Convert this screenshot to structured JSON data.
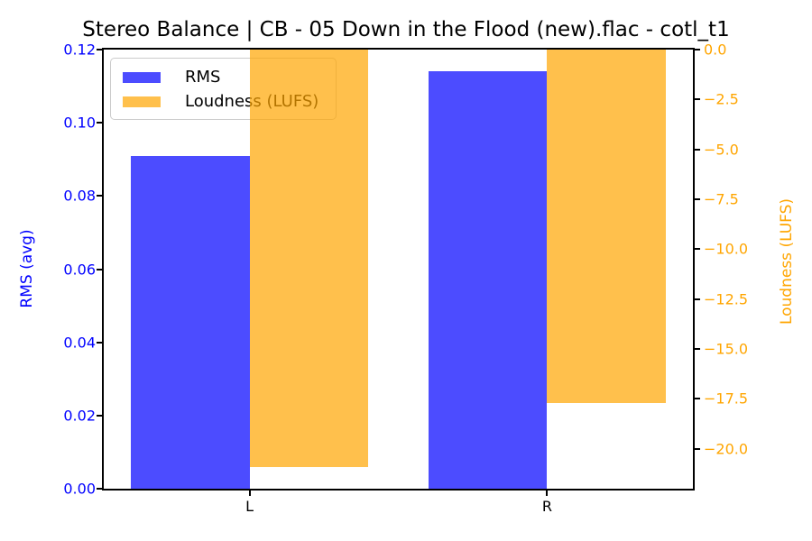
{
  "title": "Stereo Balance | CB - 05 Down in the Flood (new).flac - cotl_t1",
  "chart_data": {
    "type": "bar",
    "categories": [
      "L",
      "R"
    ],
    "x_positions": [
      0,
      1
    ],
    "bar_width": 0.4,
    "xlim": [
      -0.49,
      1.49
    ],
    "series": [
      {
        "name": "RMS",
        "axis": "left",
        "values": [
          0.091,
          0.114
        ],
        "bar_color": "rgba(0,0,255,0.7)"
      },
      {
        "name": "Loudness (LUFS)",
        "axis": "right",
        "values": [
          -20.9,
          -17.7
        ],
        "bar_color": "rgba(255,165,0,0.7)"
      }
    ],
    "left_axis": {
      "label": "RMS (avg)",
      "color": "#0000ff",
      "min": 0,
      "max": 0.12,
      "tick_values": [
        0,
        0.02,
        0.04,
        0.06,
        0.08,
        0.1,
        0.12
      ],
      "tick_labels": [
        "0.00",
        "0.02",
        "0.04",
        "0.06",
        "0.08",
        "0.10",
        "0.12"
      ]
    },
    "right_axis": {
      "label": "Loudness (LUFS)",
      "color": "#ffa500",
      "min": -22,
      "max": 0,
      "tick_values": [
        0,
        -2.5,
        -5,
        -7.5,
        -10,
        -12.5,
        -15,
        -17.5,
        -20
      ],
      "tick_labels": [
        "0.0",
        "−2.5",
        "−5.0",
        "−7.5",
        "−10.0",
        "−12.5",
        "−15.0",
        "−17.5",
        "−20.0"
      ]
    },
    "legend": {
      "position": "upper left",
      "entries": [
        "RMS",
        "Loudness (LUFS)"
      ]
    },
    "grid": false
  }
}
